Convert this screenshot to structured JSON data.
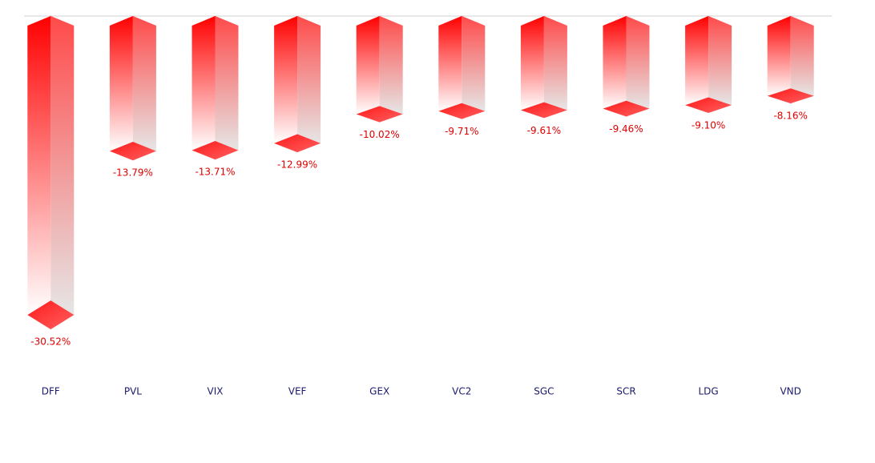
{
  "chart_data": {
    "type": "bar",
    "categories": [
      "DFF",
      "PVL",
      "VIX",
      "VEF",
      "GEX",
      "VC2",
      "SGC",
      "SCR",
      "LDG",
      "VND"
    ],
    "values": [
      -30.52,
      -13.79,
      -13.71,
      -12.99,
      -10.02,
      -9.71,
      -9.61,
      -9.46,
      -9.1,
      -8.16
    ],
    "value_labels": [
      "-30.52%",
      "-13.79%",
      "-13.71%",
      "-12.99%",
      "-10.02%",
      "-9.71%",
      "-9.61%",
      "-9.46%",
      "-9.10%",
      "-8.16%"
    ],
    "color": "#ff0000",
    "ylim": [
      -31,
      0
    ]
  }
}
